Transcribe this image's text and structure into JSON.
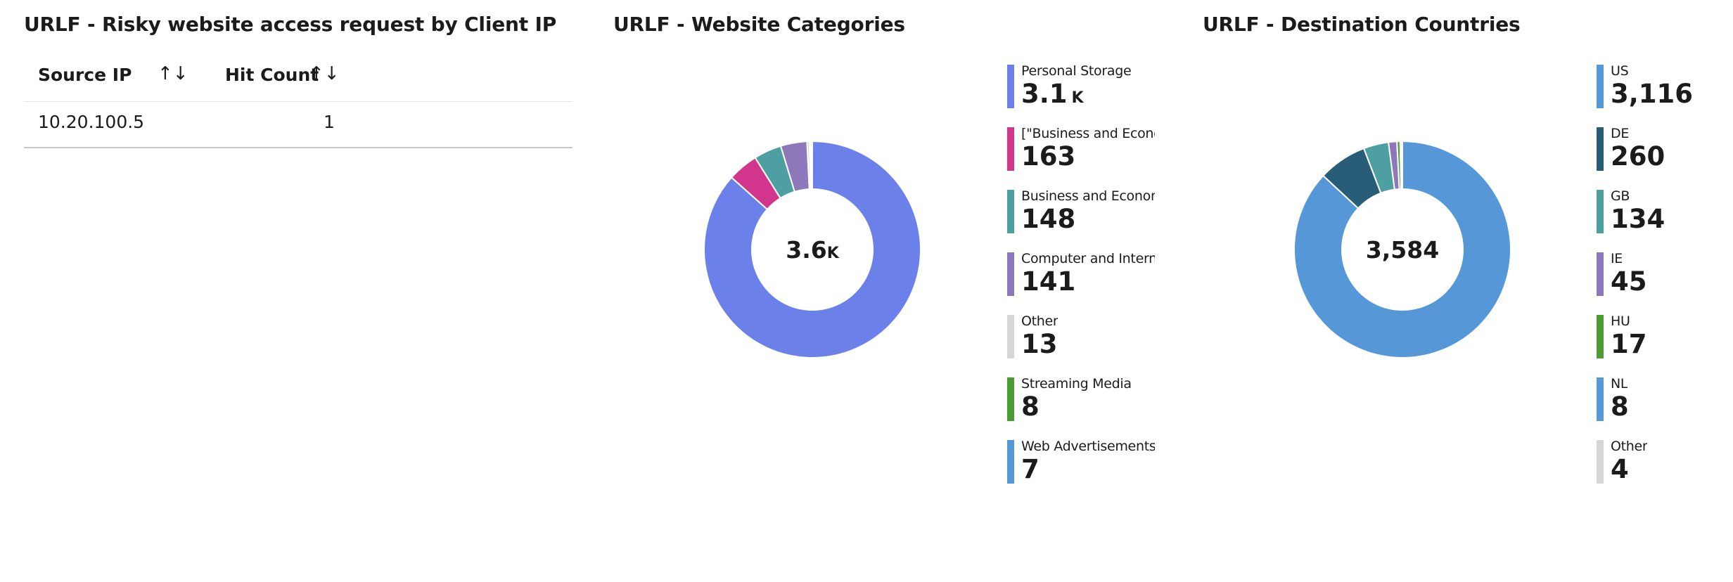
{
  "colors": {
    "blue_purple": "#6b80e8",
    "magenta": "#d2368c",
    "teal": "#4e9fa2",
    "purple": "#8d78bb",
    "gray": "#d7d7d7",
    "green": "#4c9b33",
    "sky_blue": "#5597d7",
    "dark_teal": "#275d76"
  },
  "table_panel": {
    "title": "URLF - Risky website access request by Client IP",
    "columns": [
      {
        "label": "Source IP",
        "sort_icon": "sort-arrows-icon"
      },
      {
        "label": "Hit Count",
        "sort_icon": "sort-arrows-icon"
      }
    ],
    "sort_glyph": "↑↓",
    "rows": [
      {
        "source_ip": "10.20.100.5",
        "hit_count": "1"
      }
    ]
  },
  "categories_panel": {
    "title": "URLF - Website Categories",
    "center_total": "3.6",
    "center_total_suffix": "K",
    "legend": [
      {
        "label": "Personal Storage",
        "display_value": "3.1",
        "suffix": "K",
        "color_key": "blue_purple"
      },
      {
        "label": "[\"Business and Econom",
        "display_value": "163",
        "suffix": "",
        "color_key": "magenta"
      },
      {
        "label": "Business and Economy",
        "display_value": "148",
        "suffix": "",
        "color_key": "teal"
      },
      {
        "label": "Computer and Internet",
        "display_value": "141",
        "suffix": "",
        "color_key": "purple"
      },
      {
        "label": "Other",
        "display_value": "13",
        "suffix": "",
        "color_key": "gray"
      },
      {
        "label": "Streaming Media",
        "display_value": "8",
        "suffix": "",
        "color_key": "green"
      },
      {
        "label": "Web Advertisements",
        "display_value": "7",
        "suffix": "",
        "color_key": "sky_blue"
      }
    ]
  },
  "countries_panel": {
    "title": "URLF - Destination Countries",
    "center_total": "3,584",
    "center_total_suffix": "",
    "legend": [
      {
        "label": "US",
        "display_value": "3,116",
        "suffix": "",
        "color_key": "sky_blue"
      },
      {
        "label": "DE",
        "display_value": "260",
        "suffix": "",
        "color_key": "dark_teal"
      },
      {
        "label": "GB",
        "display_value": "134",
        "suffix": "",
        "color_key": "teal"
      },
      {
        "label": "IE",
        "display_value": "45",
        "suffix": "",
        "color_key": "purple"
      },
      {
        "label": "HU",
        "display_value": "17",
        "suffix": "",
        "color_key": "green"
      },
      {
        "label": "NL",
        "display_value": "8",
        "suffix": "",
        "color_key": "sky_blue"
      },
      {
        "label": "Other",
        "display_value": "4",
        "suffix": "",
        "color_key": "gray"
      }
    ]
  },
  "chart_data": [
    {
      "type": "pie",
      "title": "URLF - Website Categories",
      "categories": [
        "Personal Storage",
        "[\"Business and Econom",
        "Business and Economy",
        "Computer and Internet",
        "Other",
        "Streaming Media",
        "Web Advertisements"
      ],
      "values": [
        3100,
        163,
        148,
        141,
        13,
        8,
        7
      ],
      "total_label": "3.6K",
      "legend_position": "right"
    },
    {
      "type": "pie",
      "title": "URLF - Destination Countries",
      "categories": [
        "US",
        "DE",
        "GB",
        "IE",
        "HU",
        "NL",
        "Other"
      ],
      "values": [
        3116,
        260,
        134,
        45,
        17,
        8,
        4
      ],
      "total_label": "3,584",
      "legend_position": "right"
    }
  ]
}
